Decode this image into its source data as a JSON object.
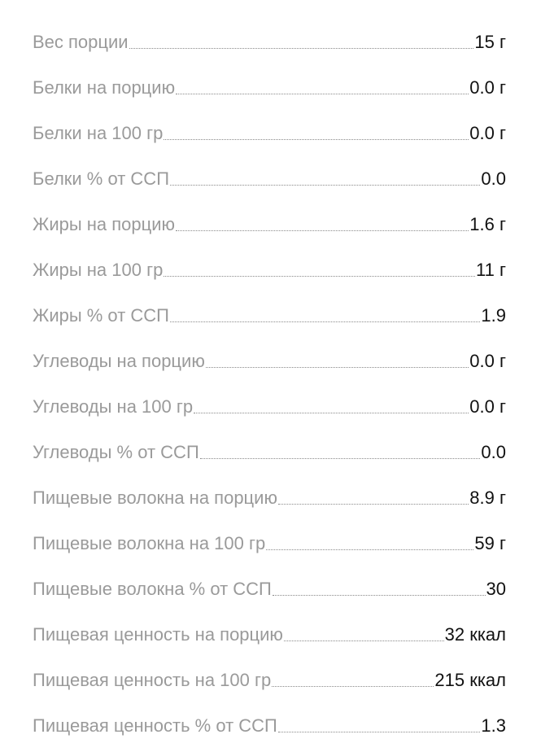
{
  "nutrition": {
    "rows": [
      {
        "label": "Вес порции",
        "value": "15 г"
      },
      {
        "label": "Белки на порцию",
        "value": "0.0 г"
      },
      {
        "label": "Белки на 100 гр",
        "value": "0.0 г"
      },
      {
        "label": "Белки % от ССП",
        "value": "0.0"
      },
      {
        "label": "Жиры на порцию",
        "value": "1.6 г"
      },
      {
        "label": "Жиры на 100 гр",
        "value": "11 г"
      },
      {
        "label": "Жиры % от ССП",
        "value": "1.9"
      },
      {
        "label": "Углеводы на порцию",
        "value": "0.0 г"
      },
      {
        "label": "Углеводы на 100 гр",
        "value": "0.0 г"
      },
      {
        "label": "Углеводы % от ССП",
        "value": "0.0"
      },
      {
        "label": "Пищевые волокна на порцию",
        "value": "8.9 г"
      },
      {
        "label": "Пищевые волокна на 100 гр",
        "value": "59 г"
      },
      {
        "label": "Пищевые волокна % от ССП",
        "value": "30"
      },
      {
        "label": "Пищевая ценность на порцию",
        "value": "32 ккал"
      },
      {
        "label": "Пищевая ценность на 100 гр",
        "value": "215 ккал"
      },
      {
        "label": "Пищевая ценность % от ССП",
        "value": "1.3"
      }
    ]
  },
  "colors": {
    "label": "#9a9a9a",
    "value": "#111111",
    "leader": "#8a8a8a",
    "background": "#ffffff"
  }
}
